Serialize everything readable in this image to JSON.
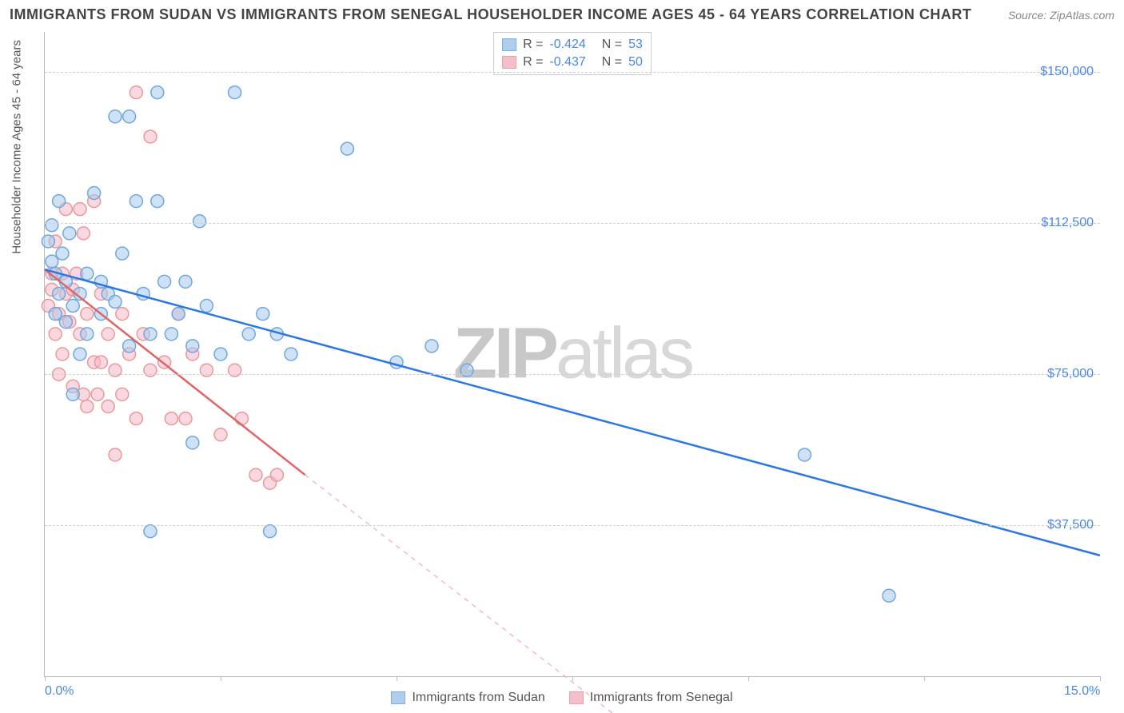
{
  "header": {
    "title": "IMMIGRANTS FROM SUDAN VS IMMIGRANTS FROM SENEGAL HOUSEHOLDER INCOME AGES 45 - 64 YEARS CORRELATION CHART",
    "source": "Source: ZipAtlas.com"
  },
  "watermark": {
    "bold": "ZIP",
    "light": "atlas"
  },
  "chart": {
    "type": "scatter-with-regression",
    "xlim": [
      0,
      15
    ],
    "ylim": [
      0,
      160000
    ],
    "xticks": [
      0,
      2.5,
      5,
      7.5,
      10,
      12.5,
      15
    ],
    "xtick_labels": {
      "0": "0.0%",
      "15": "15.0%"
    },
    "yticks": [
      37500,
      75000,
      112500,
      150000
    ],
    "ytick_labels": [
      "$37,500",
      "$75,000",
      "$112,500",
      "$150,000"
    ],
    "yaxis_label": "Householder Income Ages 45 - 64 years",
    "grid_color": "#d0d0d0",
    "axis_color": "#bbbbbb",
    "background_color": "#ffffff",
    "tick_label_color": "#4a86e8",
    "marker_radius": 8,
    "marker_stroke_width": 1.5,
    "line_width": 2.5,
    "series": [
      {
        "name": "Immigrants from Sudan",
        "fill_color": "#a8c8ec",
        "stroke_color": "#6fa8dc",
        "line_color": "#2b78e4",
        "fill_opacity": 0.55,
        "R": "-0.424",
        "N": "53",
        "regression": {
          "x1": 0,
          "y1": 101000,
          "x2": 15,
          "y2": 30000,
          "dash": "none",
          "dash_extend": null
        },
        "points": [
          [
            0.1,
            112000
          ],
          [
            0.1,
            103000
          ],
          [
            0.15,
            90000
          ],
          [
            0.15,
            100000
          ],
          [
            0.2,
            118000
          ],
          [
            0.2,
            95000
          ],
          [
            0.25,
            105000
          ],
          [
            0.3,
            98000
          ],
          [
            0.3,
            88000
          ],
          [
            0.35,
            110000
          ],
          [
            0.4,
            92000
          ],
          [
            0.4,
            70000
          ],
          [
            0.5,
            95000
          ],
          [
            0.5,
            80000
          ],
          [
            0.6,
            100000
          ],
          [
            0.6,
            85000
          ],
          [
            0.7,
            120000
          ],
          [
            0.8,
            98000
          ],
          [
            0.8,
            90000
          ],
          [
            0.9,
            95000
          ],
          [
            1.0,
            139000
          ],
          [
            1.0,
            93000
          ],
          [
            1.1,
            105000
          ],
          [
            1.2,
            139000
          ],
          [
            1.2,
            82000
          ],
          [
            1.3,
            118000
          ],
          [
            1.4,
            95000
          ],
          [
            1.5,
            85000
          ],
          [
            1.5,
            36000
          ],
          [
            1.6,
            145000
          ],
          [
            1.6,
            118000
          ],
          [
            1.7,
            98000
          ],
          [
            1.8,
            85000
          ],
          [
            1.9,
            90000
          ],
          [
            2.0,
            98000
          ],
          [
            2.1,
            82000
          ],
          [
            2.1,
            58000
          ],
          [
            2.2,
            113000
          ],
          [
            2.3,
            92000
          ],
          [
            2.5,
            80000
          ],
          [
            2.7,
            145000
          ],
          [
            2.9,
            85000
          ],
          [
            3.1,
            90000
          ],
          [
            3.2,
            36000
          ],
          [
            3.3,
            85000
          ],
          [
            3.5,
            80000
          ],
          [
            4.3,
            131000
          ],
          [
            5.0,
            78000
          ],
          [
            5.5,
            82000
          ],
          [
            6.0,
            76000
          ],
          [
            10.8,
            55000
          ],
          [
            12.0,
            20000
          ],
          [
            0.05,
            108000
          ]
        ]
      },
      {
        "name": "Immigrants from Senegal",
        "fill_color": "#f4b8c8",
        "stroke_color": "#ea9999",
        "line_color": "#e06666",
        "fill_opacity": 0.55,
        "R": "-0.437",
        "N": "50",
        "regression": {
          "x1": 0,
          "y1": 101000,
          "x2": 3.7,
          "y2": 50000,
          "dash": "none",
          "dash_extend": {
            "x2": 8.5,
            "y2": -15000
          }
        },
        "points": [
          [
            0.1,
            100000
          ],
          [
            0.1,
            96000
          ],
          [
            0.15,
            108000
          ],
          [
            0.15,
            85000
          ],
          [
            0.2,
            90000
          ],
          [
            0.2,
            75000
          ],
          [
            0.25,
            100000
          ],
          [
            0.25,
            80000
          ],
          [
            0.3,
            116000
          ],
          [
            0.3,
            95000
          ],
          [
            0.35,
            88000
          ],
          [
            0.4,
            72000
          ],
          [
            0.4,
            96000
          ],
          [
            0.45,
            100000
          ],
          [
            0.5,
            116000
          ],
          [
            0.5,
            85000
          ],
          [
            0.55,
            70000
          ],
          [
            0.6,
            90000
          ],
          [
            0.6,
            67000
          ],
          [
            0.7,
            118000
          ],
          [
            0.7,
            78000
          ],
          [
            0.75,
            70000
          ],
          [
            0.8,
            95000
          ],
          [
            0.8,
            78000
          ],
          [
            0.9,
            67000
          ],
          [
            0.9,
            85000
          ],
          [
            1.0,
            76000
          ],
          [
            1.0,
            55000
          ],
          [
            1.1,
            90000
          ],
          [
            1.1,
            70000
          ],
          [
            1.2,
            80000
          ],
          [
            1.3,
            145000
          ],
          [
            1.3,
            64000
          ],
          [
            1.4,
            85000
          ],
          [
            1.5,
            76000
          ],
          [
            1.5,
            134000
          ],
          [
            1.7,
            78000
          ],
          [
            1.8,
            64000
          ],
          [
            1.9,
            90000
          ],
          [
            2.0,
            64000
          ],
          [
            2.1,
            80000
          ],
          [
            2.3,
            76000
          ],
          [
            2.5,
            60000
          ],
          [
            2.7,
            76000
          ],
          [
            2.8,
            64000
          ],
          [
            3.0,
            50000
          ],
          [
            3.2,
            48000
          ],
          [
            3.3,
            50000
          ],
          [
            0.05,
            92000
          ],
          [
            0.55,
            110000
          ]
        ]
      }
    ]
  },
  "legend_top": {
    "r_label": "R =",
    "n_label": "N ="
  },
  "legend_bottom": {
    "items": [
      "Immigrants from Sudan",
      "Immigrants from Senegal"
    ]
  }
}
